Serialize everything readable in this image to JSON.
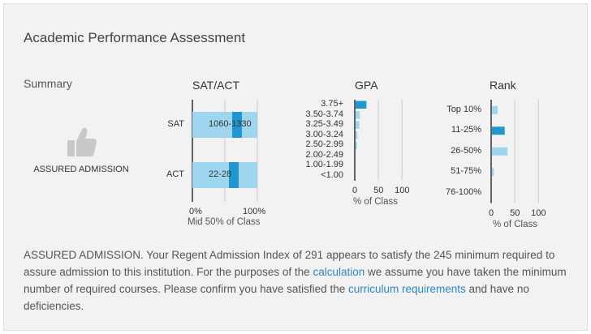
{
  "title": "Academic Performance Assessment",
  "summary_label": "Summary",
  "status": "ASSURED ADMISSION",
  "colors": {
    "light": "#9dd6ee",
    "dark": "#2196cf",
    "grid": "#cccccc",
    "link": "#2e86c8"
  },
  "icon": "thumbs-up-icon",
  "chart_data": [
    {
      "type": "bar",
      "title": "SAT/ACT",
      "xlabel": "Mid 50% of Class",
      "categories": [
        "SAT",
        "ACT"
      ],
      "range_labels": [
        "1060-1330",
        "22-28"
      ],
      "ranges": [
        [
          0,
          65
        ],
        [
          0,
          60
        ]
      ],
      "applicant": [
        65,
        60
      ],
      "marker_width": 15,
      "ticks": [
        "0%",
        "100%"
      ],
      "xlim": [
        0,
        100
      ]
    },
    {
      "type": "bar",
      "title": "GPA",
      "xlabel": "% of Class",
      "categories": [
        "3.75+",
        "3.50-3.74",
        "3.25-3.49",
        "3.00-3.24",
        "2.50-2.99",
        "2.00-2.49",
        "1.00-1.99",
        "<1.00"
      ],
      "values": [
        23,
        9,
        8,
        4,
        3,
        0,
        0,
        0
      ],
      "highlight_index": 0,
      "ticks": [
        "0",
        "50",
        "100"
      ],
      "xlim": [
        0,
        110
      ]
    },
    {
      "type": "bar",
      "title": "Rank",
      "xlabel": "% of Class",
      "categories": [
        "Top 10%",
        "11-25%",
        "26-50%",
        "51-75%",
        "76-100%"
      ],
      "values": [
        12,
        27,
        33,
        4,
        0
      ],
      "highlight_index": 1,
      "ticks": [
        "0",
        "50",
        "100"
      ],
      "xlim": [
        0,
        110
      ]
    }
  ],
  "paragraph": {
    "part1": "ASSURED ADMISSION. Your Regent Admission Index of 291 appears to satisfy the 245 minimum required to assure admission to this institution. For the purposes of the ",
    "link1": "calculation",
    "part2": " we assume you have taken the minimum number of required courses. Please confirm you have satisfied the ",
    "link2": "curriculum requirements",
    "part3": " and have no deficiencies."
  }
}
